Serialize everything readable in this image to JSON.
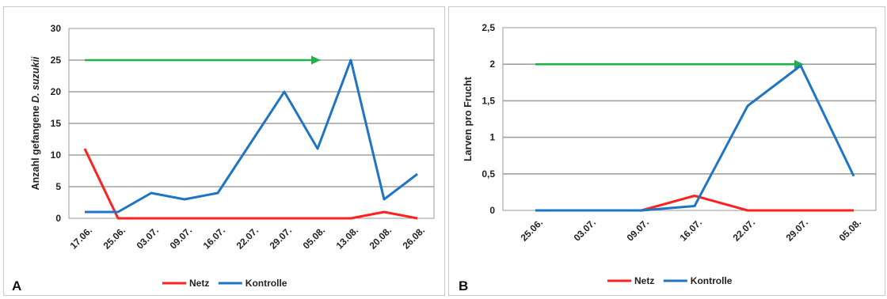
{
  "chart_data": [
    {
      "panel_label": "A",
      "type": "line",
      "ylabel_prefix": "Anzahl gefangene ",
      "ylabel_italic": "D. suzukii",
      "categories": [
        "17.06.",
        "25.06.",
        "03.07.",
        "09.07.",
        "16.07.",
        "22.07.",
        "29.07.",
        "05.08.",
        "13.08.",
        "20.08.",
        "26.08."
      ],
      "yticks": [
        "0",
        "5",
        "10",
        "15",
        "20",
        "25",
        "30"
      ],
      "ylim": [
        0,
        30
      ],
      "grid": true,
      "legend_position": "bottom",
      "series": [
        {
          "name": "Netz",
          "color": "#ff2020",
          "values": [
            11,
            0,
            0,
            0,
            0,
            0,
            0,
            0,
            0,
            1,
            0
          ]
        },
        {
          "name": "Kontrolle",
          "color": "#1f74c4",
          "values": [
            1,
            1,
            4,
            3,
            4,
            12,
            20,
            11,
            25,
            3,
            7
          ]
        }
      ],
      "arrow": {
        "color": "#22b04a",
        "y": 25,
        "x_start": "17.06.",
        "x_end": "05.08."
      }
    },
    {
      "panel_label": "B",
      "type": "line",
      "ylabel": "Larven pro Frucht",
      "categories": [
        "25.06.",
        "03.07.",
        "09.07.",
        "16.07.",
        "22.07.",
        "29.07.",
        "05.08."
      ],
      "yticks": [
        "0",
        "0,5",
        "1",
        "1,5",
        "2",
        "2,5"
      ],
      "ylim": [
        0,
        2.5
      ],
      "grid": true,
      "legend_position": "bottom",
      "series": [
        {
          "name": "Netz",
          "color": "#ff2020",
          "values": [
            0,
            0,
            0,
            0.2,
            0,
            0,
            0
          ]
        },
        {
          "name": "Kontrolle",
          "color": "#1f74c4",
          "values": [
            0,
            0,
            0,
            0.06,
            1.43,
            1.98,
            0.47
          ]
        }
      ],
      "arrow": {
        "color": "#22b04a",
        "y": 2,
        "x_start": "25.06.",
        "x_end": "29.07."
      }
    }
  ]
}
